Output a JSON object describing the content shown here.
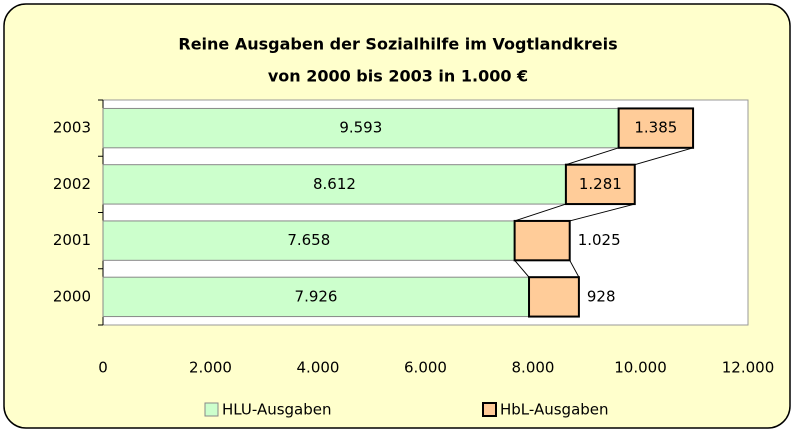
{
  "chart_data": {
    "type": "stacked-bar-horizontal",
    "title": "Reine Ausgaben der Sozialhilfe im Vogtlandkreis",
    "subtitle": "von 2000 bis 2003 in 1.000 €",
    "categories": [
      "2000",
      "2001",
      "2002",
      "2003"
    ],
    "series": [
      {
        "name": "HLU-Ausgaben",
        "color": "#ccffcc",
        "values": [
          7926,
          7658,
          8612,
          9593
        ],
        "value_labels": [
          "7.926",
          "7.658",
          "8.612",
          "9.593"
        ]
      },
      {
        "name": "HbL-Ausgaben",
        "color": "#ffcc99",
        "values": [
          928,
          1025,
          1281,
          1385
        ],
        "value_labels": [
          "928",
          "1.025",
          "1.281",
          "1.385"
        ]
      }
    ],
    "xlim": [
      0,
      12000
    ],
    "xticks": [
      0,
      {
        "value": 2000,
        "label": "2.000"
      },
      {
        "value": 4000,
        "label": "4.000"
      },
      {
        "value": 6000,
        "label": "6.000"
      },
      {
        "value": 8000,
        "label": "8.000"
      },
      {
        "value": 10000,
        "label": "10.000"
      },
      {
        "value": 12000,
        "label": "12.000"
      }
    ],
    "grid": false,
    "legend": "bottom"
  }
}
